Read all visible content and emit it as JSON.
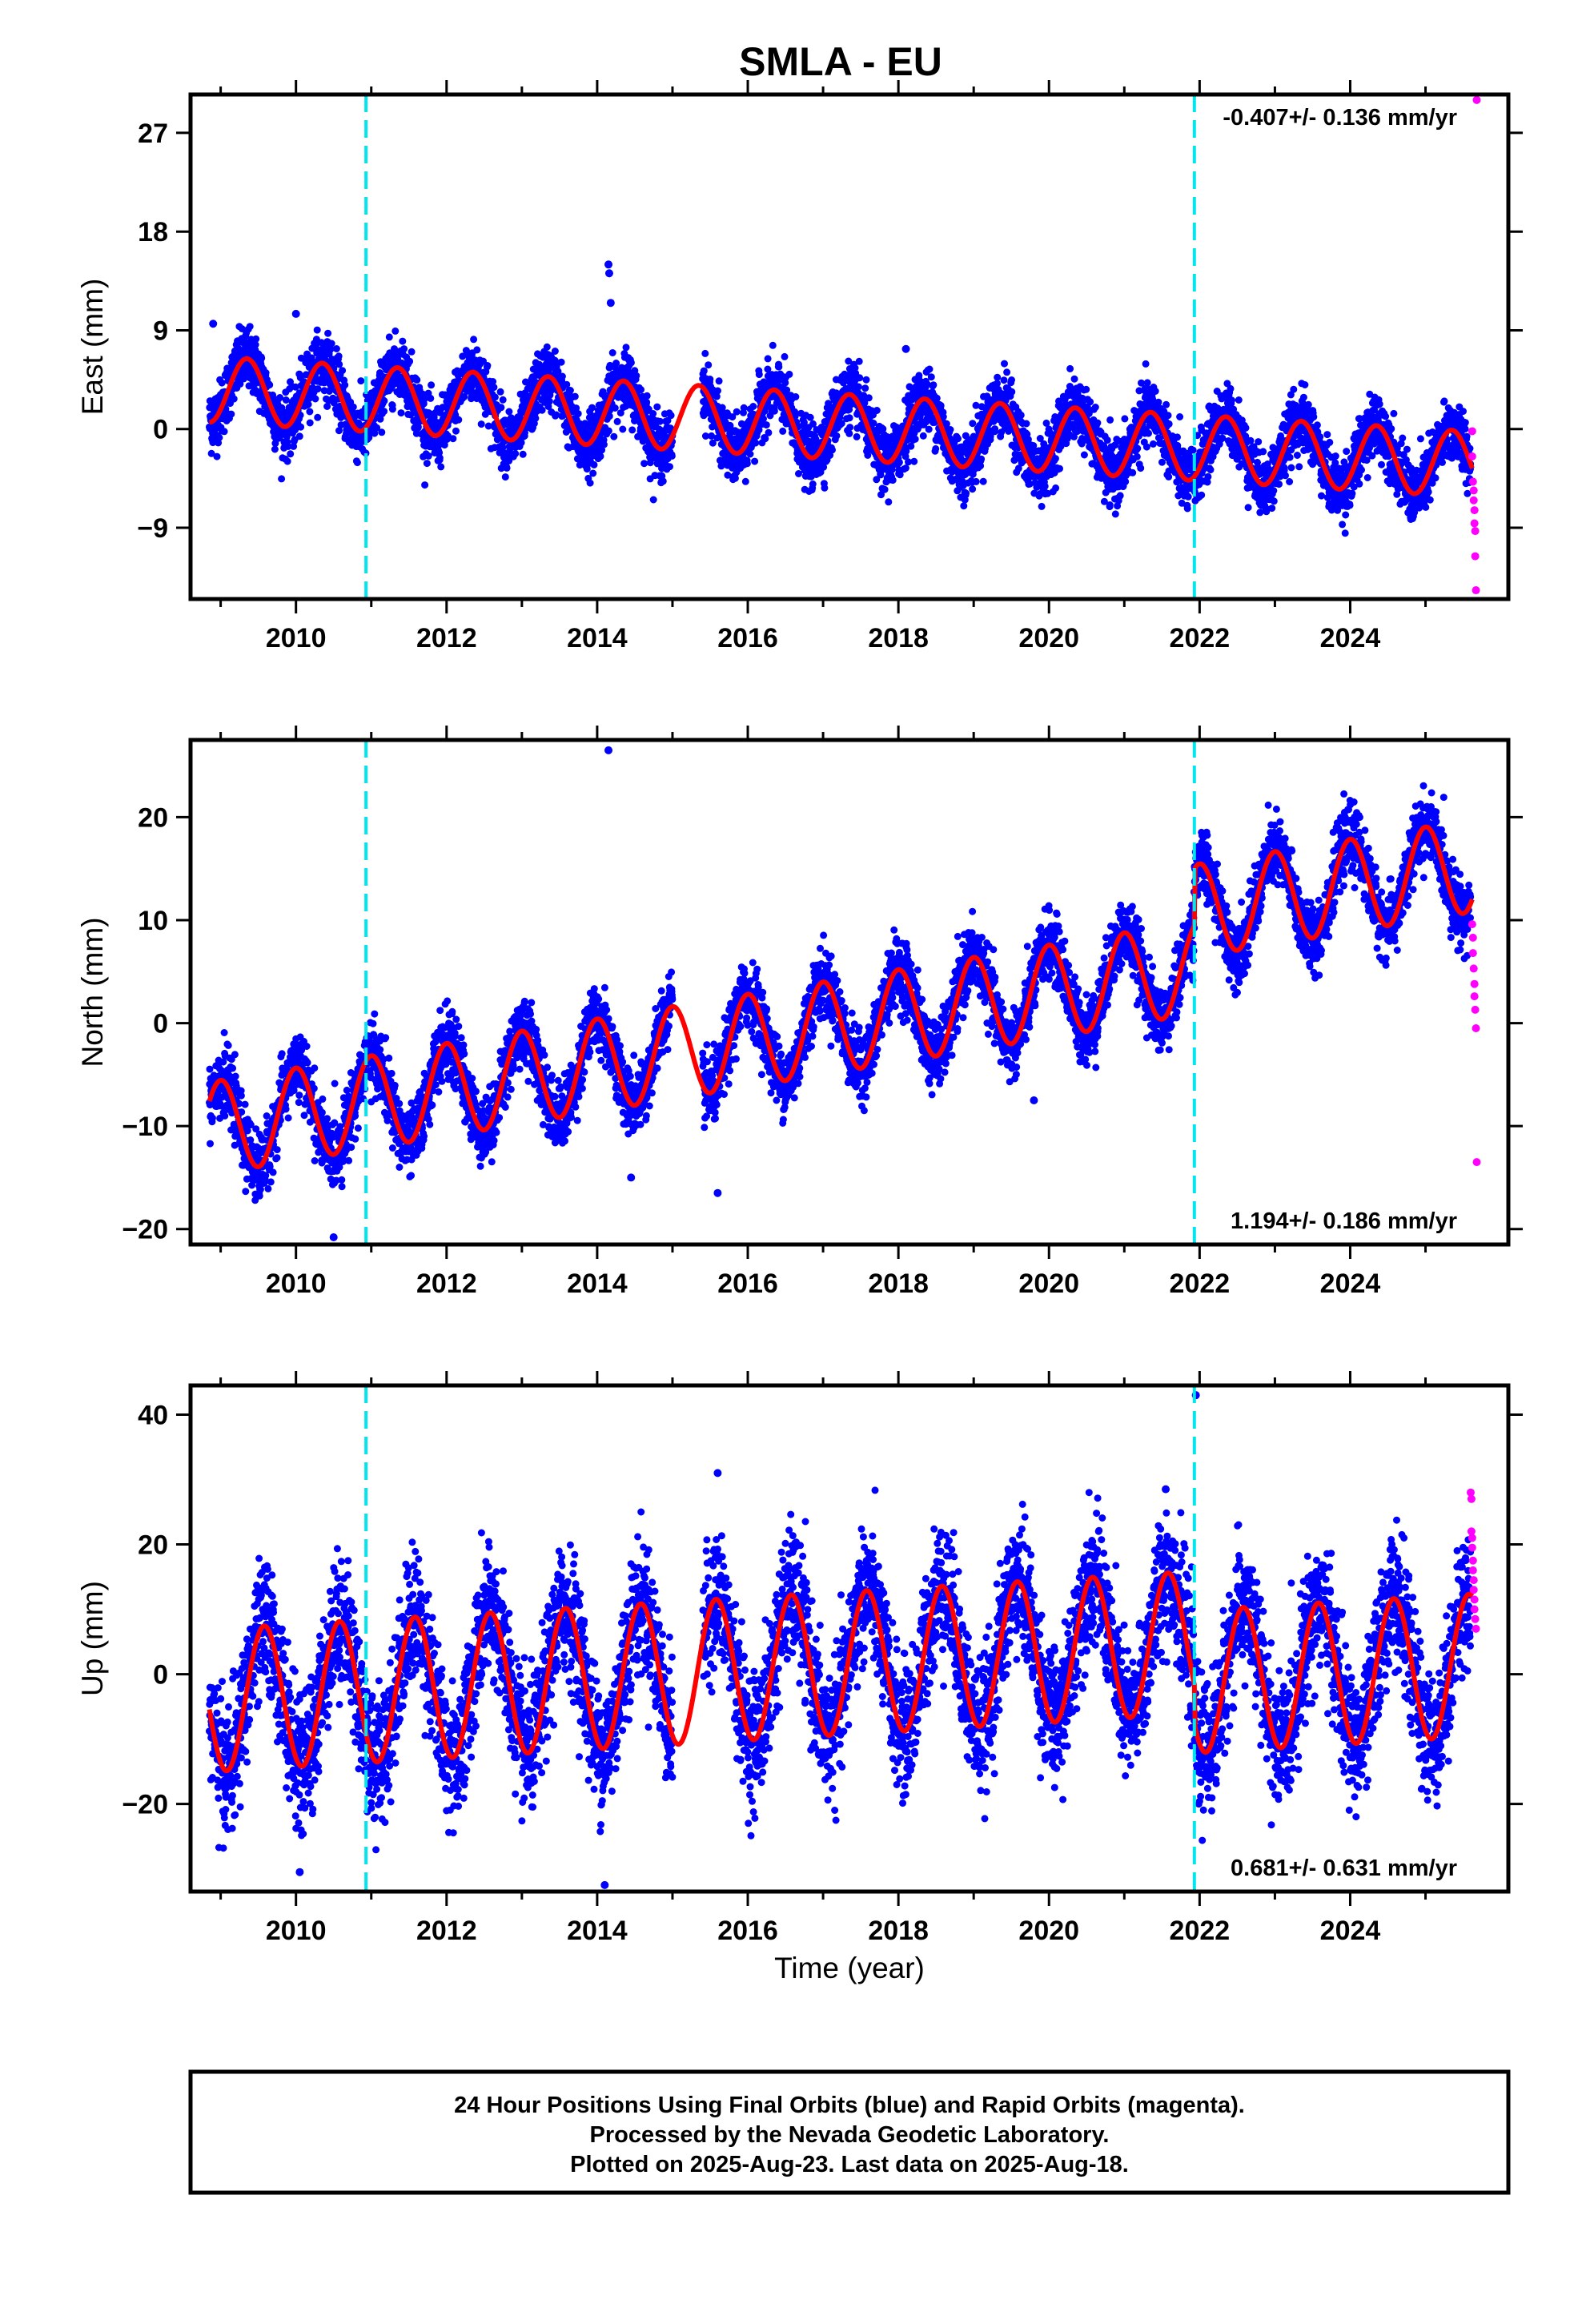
{
  "title": "SMLA - EU",
  "colors": {
    "final_orbits": "#0000ff",
    "rapid_orbits": "#ff00ff",
    "model_fit": "#ff0000",
    "steps": "#00e5ee",
    "frame": "#000000"
  },
  "chart_data": [
    {
      "type": "scatter",
      "component": "east",
      "ylabel": "East (mm)",
      "xlim": [
        2008.6,
        2026.1
      ],
      "ylim": [
        -15.5,
        30.5
      ],
      "yticks": [
        -9,
        0,
        9,
        18,
        27
      ],
      "ytick_labels": [
        "−9",
        "0",
        "9",
        "18",
        "27"
      ],
      "xticks": [
        2010,
        2012,
        2014,
        2016,
        2018,
        2020,
        2022,
        2024
      ],
      "xtick_labels": [
        "2010",
        "2012",
        "2014",
        "2016",
        "2018",
        "2020",
        "2022",
        "2024"
      ],
      "rate_text": "-0.407+/- 0.136 mm/yr",
      "rate_position": "top-right",
      "rate_mm_yr": -0.407,
      "rate_sigma_mm_yr": 0.136,
      "annual_amplitude_mm": 3.0,
      "annual_peak_year_fraction": 0.35,
      "noise_mm": 1.4,
      "offset_at_2017_mm": 0.3,
      "data_gap": [
        2015.0,
        2015.4
      ],
      "outliers": [
        [
          2014.15,
          15.0
        ],
        [
          2014.16,
          14.2
        ],
        [
          2014.18,
          11.5
        ],
        [
          2010.0,
          10.5
        ],
        [
          2018.1,
          7.3
        ],
        [
          2008.9,
          9.6
        ]
      ],
      "rapid_points": [
        [
          2025.62,
          -0.2
        ],
        [
          2025.62,
          -2.5
        ],
        [
          2025.63,
          -4.8
        ],
        [
          2025.64,
          -5.6
        ],
        [
          2025.64,
          -6.5
        ],
        [
          2025.65,
          -7.4
        ],
        [
          2025.65,
          -8.6
        ],
        [
          2025.66,
          -9.3
        ],
        [
          2025.66,
          -11.6
        ],
        [
          2025.67,
          -14.7
        ],
        [
          2025.68,
          30.0
        ]
      ]
    },
    {
      "type": "scatter",
      "component": "north",
      "ylabel": "North (mm)",
      "xlim": [
        2008.6,
        2026.1
      ],
      "ylim": [
        -21.5,
        27.5
      ],
      "yticks": [
        -20,
        -10,
        0,
        10,
        20
      ],
      "ytick_labels": [
        "−20",
        "−10",
        "0",
        "10",
        "20"
      ],
      "xticks": [
        2010,
        2012,
        2014,
        2016,
        2018,
        2020,
        2022,
        2024
      ],
      "xtick_labels": [
        "2010",
        "2012",
        "2014",
        "2016",
        "2018",
        "2020",
        "2022",
        "2024"
      ],
      "rate_text": "1.194+/- 0.186 mm/yr",
      "rate_position": "bottom-right",
      "rate_mm_yr": 1.194,
      "rate_sigma_mm_yr": 0.186,
      "annual_amplitude_mm": 4.5,
      "annual_peak_year_fraction": 0.0,
      "noise_mm": 1.6,
      "offset_at_2017_mm": -0.5,
      "steps": [
        [
          2021.93,
          5.5
        ]
      ],
      "data_gap": [
        2015.0,
        2015.4
      ],
      "outliers": [
        [
          2014.15,
          26.5
        ],
        [
          2010.5,
          -20.8
        ],
        [
          2015.6,
          -16.5
        ],
        [
          2014.45,
          -15.0
        ],
        [
          2019.8,
          -7.5
        ]
      ],
      "rapid_points": [
        [
          2025.62,
          9.6
        ],
        [
          2025.63,
          8.3
        ],
        [
          2025.63,
          6.8
        ],
        [
          2025.64,
          5.3
        ],
        [
          2025.65,
          3.8
        ],
        [
          2025.65,
          2.6
        ],
        [
          2025.66,
          1.3
        ],
        [
          2025.67,
          -0.5
        ],
        [
          2025.68,
          -13.5
        ]
      ]
    },
    {
      "type": "scatter",
      "component": "up",
      "ylabel": "Up (mm)",
      "xlim": [
        2008.6,
        2026.1
      ],
      "ylim": [
        -33.5,
        44.5
      ],
      "yticks": [
        -20,
        0,
        20,
        40
      ],
      "ytick_labels": [
        "−20",
        "0",
        "20",
        "40"
      ],
      "xticks": [
        2010,
        2012,
        2014,
        2016,
        2018,
        2020,
        2022,
        2024
      ],
      "xtick_labels": [
        "2010",
        "2012",
        "2014",
        "2016",
        "2018",
        "2020",
        "2022",
        "2024"
      ],
      "xlabel": "Time (year)",
      "rate_text": "0.681+/- 0.631 mm/yr",
      "rate_position": "bottom-right",
      "rate_mm_yr": 0.681,
      "rate_sigma_mm_yr": 0.631,
      "annual_amplitude_mm": 11.0,
      "annual_peak_year_fraction": 0.58,
      "noise_mm": 5.0,
      "offset_at_2017_mm": 1.5,
      "steps": [
        [
          2021.93,
          -6.0
        ]
      ],
      "data_gap": [
        2015.0,
        2015.4
      ],
      "outliers": [
        [
          2021.95,
          43.0
        ],
        [
          2014.1,
          -32.5
        ],
        [
          2010.05,
          -30.5
        ],
        [
          2015.6,
          31.0
        ],
        [
          2021.55,
          28.5
        ]
      ],
      "rapid_points": [
        [
          2025.6,
          28.0
        ],
        [
          2025.61,
          27.0
        ],
        [
          2025.61,
          22.0
        ],
        [
          2025.62,
          21.0
        ],
        [
          2025.62,
          19.5
        ],
        [
          2025.63,
          17.5
        ],
        [
          2025.63,
          16.0
        ],
        [
          2025.64,
          14.5
        ],
        [
          2025.64,
          13.0
        ],
        [
          2025.65,
          11.5
        ],
        [
          2025.65,
          10.0
        ],
        [
          2025.66,
          8.5
        ],
        [
          2025.67,
          7.0
        ]
      ]
    }
  ],
  "steps_years": [
    2010.93,
    2021.93
  ],
  "footer": {
    "line1": "24 Hour Positions Using Final Orbits (blue) and Rapid Orbits (magenta).",
    "line2": "Processed by the Nevada Geodetic Laboratory.",
    "line3": "Plotted on 2025-Aug-23. Last data on 2025-Aug-18."
  }
}
